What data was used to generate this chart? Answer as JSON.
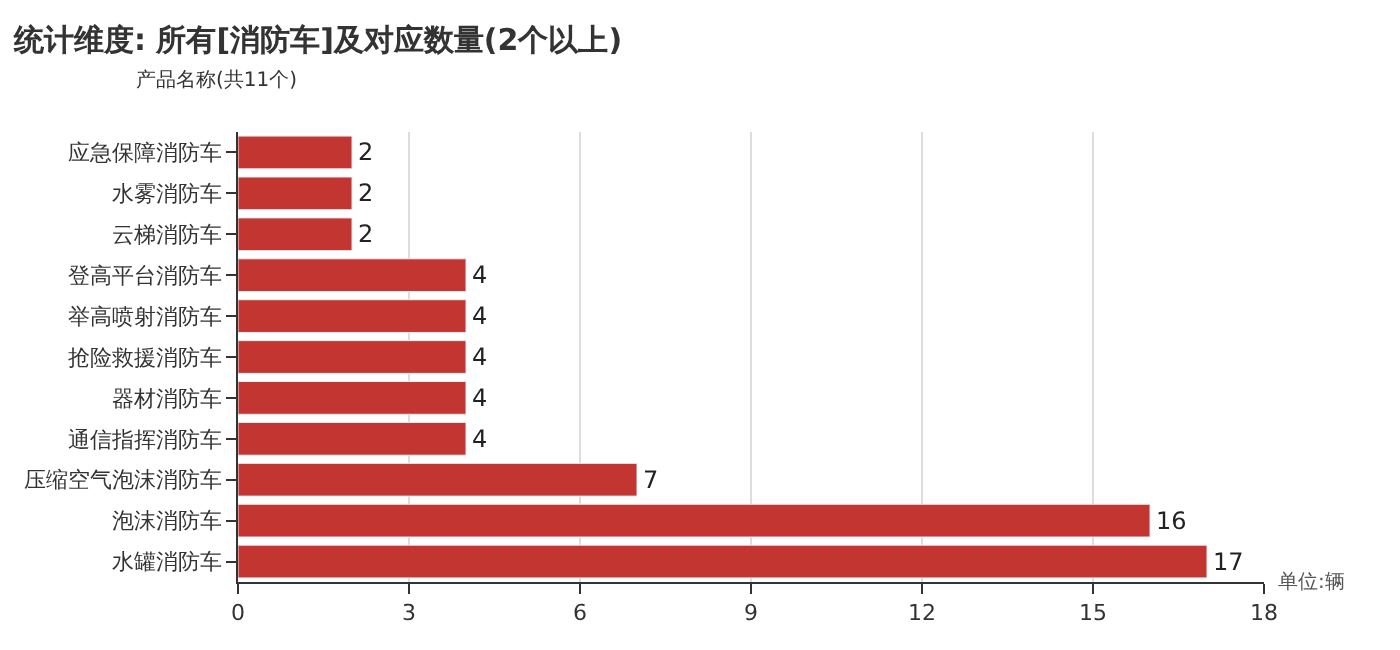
{
  "chart_data": {
    "type": "bar",
    "orientation": "horizontal",
    "title": "统计维度: 所有[消防车]及对应数量(2个以上)",
    "ylabel": "产品名称(共11个)",
    "xlabel": "单位:辆",
    "categories": [
      "应急保障消防车",
      "水雾消防车",
      "云梯消防车",
      "登高平台消防车",
      "举高喷射消防车",
      "抢险救援消防车",
      "器材消防车",
      "通信指挥消防车",
      "压缩空气泡沫消防车",
      "泡沫消防车",
      "水罐消防车"
    ],
    "values": [
      2,
      2,
      2,
      4,
      4,
      4,
      4,
      4,
      7,
      16,
      17
    ],
    "color": "#c23531",
    "xlim": [
      0,
      18
    ],
    "xticks": [
      0,
      3,
      6,
      9,
      12,
      15,
      18
    ],
    "grid": "x",
    "data_labels": true
  }
}
